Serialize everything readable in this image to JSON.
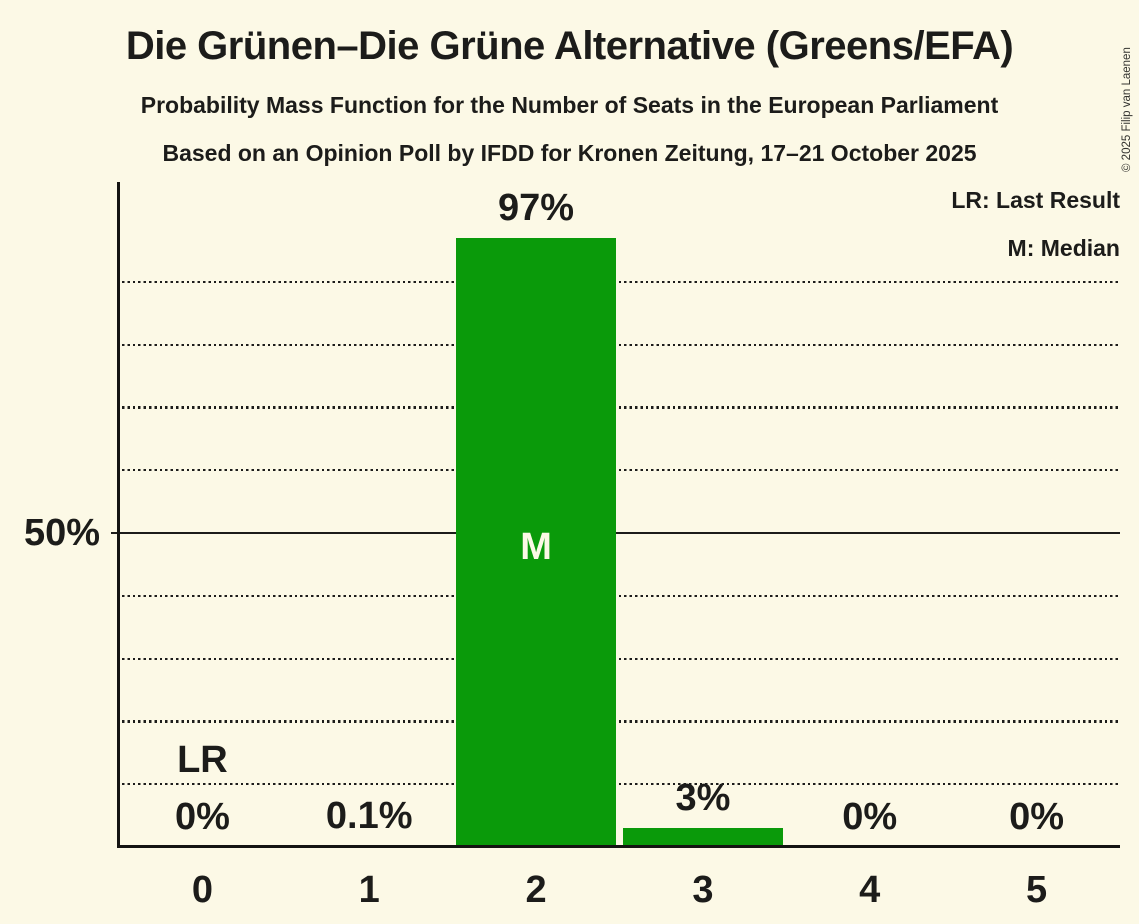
{
  "title": "Die Grünen–Die Grüne Alternative (Greens/EFA)",
  "subtitle1": "Probability Mass Function for the Number of Seats in the European Parliament",
  "subtitle2": "Based on an Opinion Poll by IFDD for Kronen Zeitung, 17–21 October 2025",
  "copyright": "© 2025 Filip van Laenen",
  "legend": {
    "lr": "LR: Last Result",
    "m": "M: Median"
  },
  "colors": {
    "background": "#FCF9E6",
    "bar": "#0A9A0A",
    "text": "#1C1C1A",
    "median_label": "#FCF9E6"
  },
  "chart_data": {
    "type": "bar",
    "title": "Die Grünen–Die Grüne Alternative (Greens/EFA)",
    "categories": [
      "0",
      "1",
      "2",
      "3",
      "4",
      "5"
    ],
    "values": [
      0,
      0.1,
      97,
      3,
      0,
      0
    ],
    "value_labels": [
      "0%",
      "0.1%",
      "97%",
      "3%",
      "0%",
      "0%"
    ],
    "xlabel": "",
    "ylabel": "",
    "ylim": [
      0,
      106
    ],
    "y_tick": {
      "value": 50,
      "label": "50%"
    },
    "dotted_gridlines_pct": [
      10,
      20,
      30,
      40,
      60,
      70,
      80,
      90
    ],
    "solid_gridline_pct": 50,
    "grid": "horizontal dotted lines every 10%, solid line at 50%",
    "legend_position": "top-right",
    "median": {
      "category": "2",
      "marker": "M"
    },
    "last_result": {
      "category": "0",
      "marker": "LR"
    }
  }
}
